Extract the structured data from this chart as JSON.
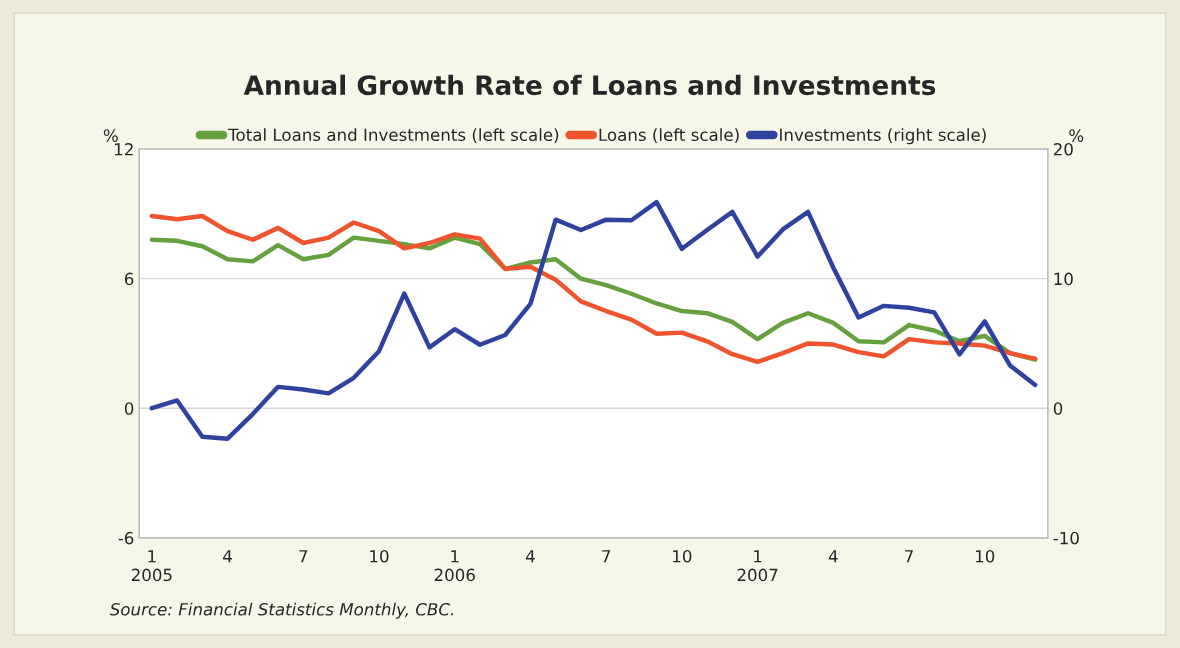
{
  "chart_data": {
    "type": "line",
    "title": "Annual Growth Rate of Loans and Investments",
    "ylabel": "%",
    "y2label": "%",
    "categories": [
      "1\n2005",
      null,
      null,
      "4",
      null,
      null,
      "7",
      null,
      null,
      "10",
      null,
      null,
      "1\n2006",
      null,
      null,
      "4",
      null,
      null,
      "7",
      null,
      null,
      "10",
      null,
      null,
      "1\n2007",
      null,
      null,
      "4",
      null,
      null,
      "7",
      null,
      null,
      "10",
      null,
      null
    ],
    "series": [
      {
        "name": "Total Loans and Investments (left scale)",
        "color": "#65a23f",
        "values": [
          7.8,
          7.75,
          7.5,
          6.9,
          6.8,
          7.55,
          6.9,
          7.1,
          7.9,
          7.75,
          7.6,
          7.4,
          7.9,
          7.6,
          6.45,
          6.75,
          6.9,
          6.0,
          5.7,
          5.3,
          4.85,
          4.5,
          4.4,
          4.0,
          3.2,
          3.95,
          4.4,
          3.95,
          3.1,
          3.05,
          3.85,
          3.6,
          3.1,
          3.35,
          2.55,
          2.25
        ]
      },
      {
        "name": "Loans (left scale)",
        "color": "#f0532d",
        "values": [
          8.9,
          8.75,
          8.9,
          8.2,
          7.8,
          8.35,
          7.65,
          7.9,
          8.6,
          8.2,
          7.4,
          7.65,
          8.05,
          7.85,
          6.45,
          6.55,
          5.95,
          4.95,
          4.5,
          4.1,
          3.45,
          3.5,
          3.1,
          2.5,
          2.15,
          2.55,
          3.0,
          2.95,
          2.6,
          2.4,
          3.2,
          3.05,
          3.0,
          2.9,
          2.55,
          2.3
        ]
      },
      {
        "name": "Investments (right scale)",
        "color": "#2f42a0",
        "axis": "y2",
        "values": [
          0,
          0.6,
          -2.2,
          -2.35,
          -0.45,
          1.65,
          1.45,
          1.15,
          2.35,
          4.4,
          8.85,
          4.7,
          6.1,
          4.9,
          5.65,
          8.05,
          14.55,
          13.75,
          14.55,
          14.5,
          15.9,
          12.3,
          13.75,
          15.15,
          11.7,
          13.8,
          15.15,
          10.85,
          7.0,
          7.9,
          7.75,
          7.4,
          4.15,
          6.7,
          3.3,
          1.8
        ]
      }
    ],
    "ylim": [
      -6,
      12
    ],
    "yticks": [
      -6,
      0,
      6,
      12
    ],
    "y2lim": [
      -10,
      20
    ],
    "y2ticks": [
      -10,
      0,
      10,
      20
    ],
    "grid": "y",
    "legend": "top",
    "line_style": "solid",
    "marker": "none",
    "annotations": [
      "Source: Financial Statistics Monthly, CBC."
    ]
  }
}
